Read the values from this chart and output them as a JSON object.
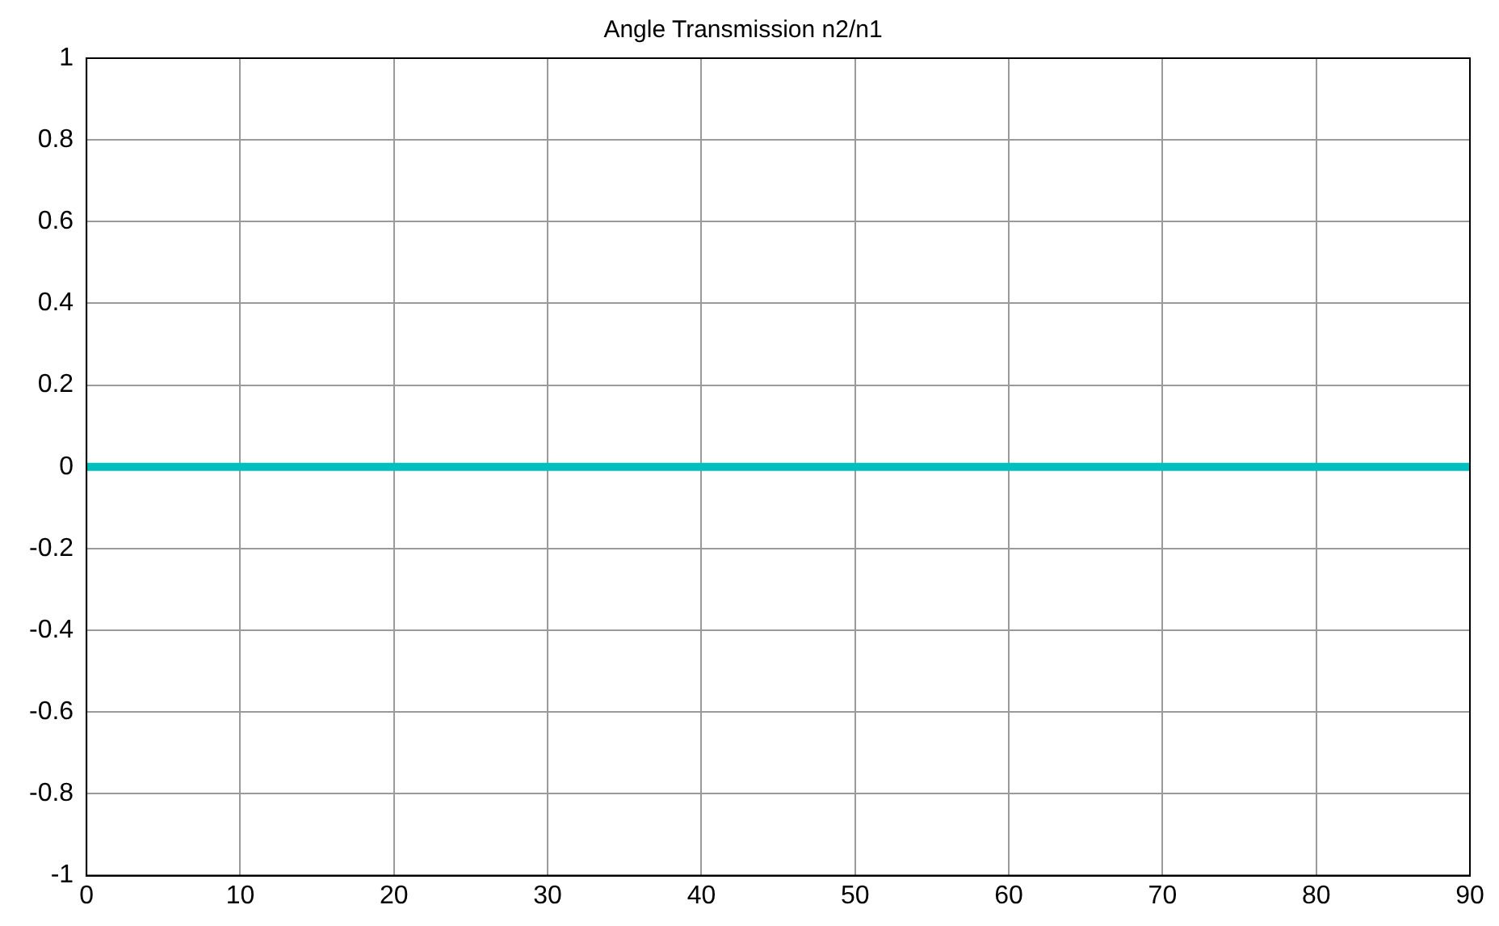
{
  "chart_data": {
    "type": "line",
    "title": "Angle Transmission n2/n1",
    "x": [
      0,
      90
    ],
    "series": [
      {
        "color": "#00bfbf",
        "values": [
          0,
          0
        ]
      }
    ],
    "xlim": [
      0,
      90
    ],
    "xticks": [
      0,
      10,
      20,
      30,
      40,
      50,
      60,
      70,
      80,
      90
    ],
    "ylim": [
      -1,
      1
    ],
    "yticks": [
      -1,
      -0.8,
      -0.6,
      -0.4,
      -0.2,
      0,
      0.2,
      0.4,
      0.6,
      0.8,
      1
    ],
    "grid": true,
    "marker": "none",
    "line_style": "solid"
  }
}
